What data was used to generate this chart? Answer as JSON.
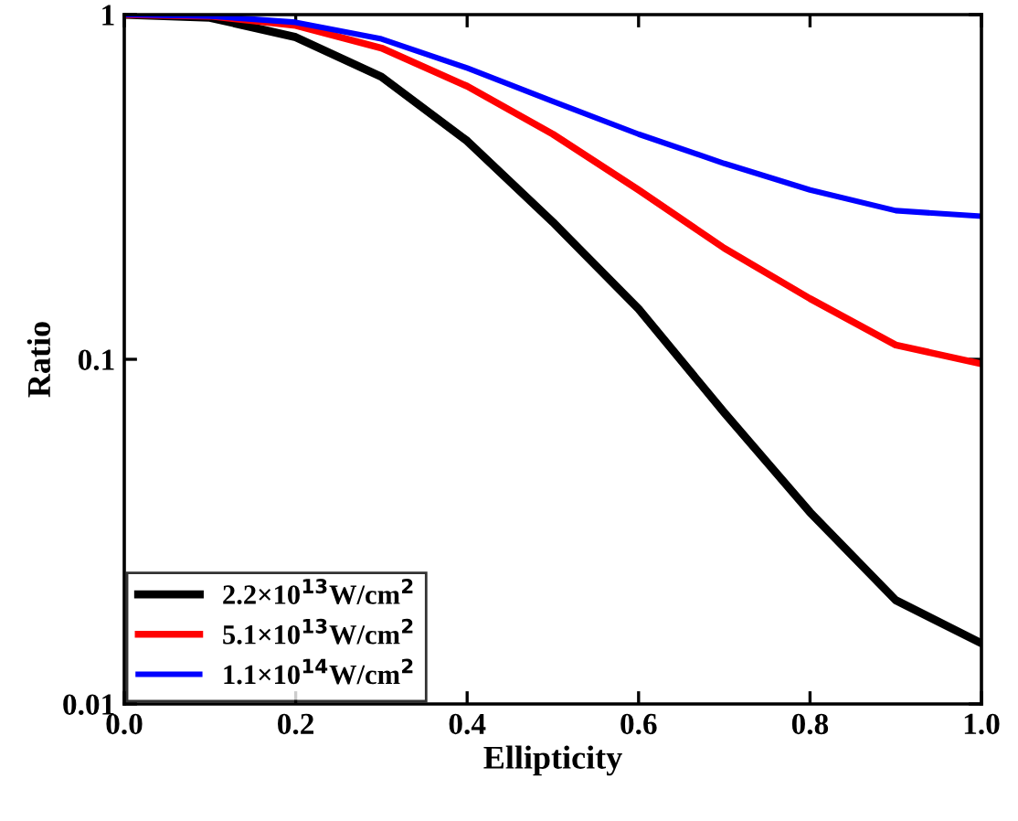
{
  "chart_data": {
    "type": "line",
    "xlabel": "Ellipticity",
    "ylabel": "Ratio",
    "log": "y",
    "x": [
      0.0,
      0.1,
      0.2,
      0.3,
      0.4,
      0.5,
      0.6,
      0.7,
      0.8,
      0.9,
      1.0
    ],
    "series": [
      {
        "name": "2.2×10$^{13}$W/cm$^{2}$",
        "color": "#000000",
        "values": [
          1,
          0.98,
          0.86,
          0.66,
          0.43,
          0.25,
          0.14,
          0.07,
          0.036,
          0.02,
          0.015
        ]
      },
      {
        "name": "5.1×10$^{13}$W/cm$^{2}$",
        "color": "#ff0000",
        "values": [
          1,
          0.99,
          0.93,
          0.8,
          0.62,
          0.45,
          0.31,
          0.21,
          0.15,
          0.11,
          0.097
        ]
      },
      {
        "name": "1.1×10$^{14}$W/cm$^{2}$",
        "color": "#0000ff",
        "values": [
          1,
          0.99,
          0.95,
          0.85,
          0.7,
          0.56,
          0.45,
          0.37,
          0.31,
          0.27,
          0.26
        ]
      }
    ],
    "xlim": [
      0,
      1
    ],
    "ylim": [
      0.01,
      1
    ],
    "xticks": [
      {
        "value": 0,
        "label": "0.0"
      },
      {
        "value": 0.2,
        "label": "0.2"
      },
      {
        "value": 0.4,
        "label": "0.4"
      },
      {
        "value": 0.6,
        "label": "0.6"
      },
      {
        "value": 0.8,
        "label": "0.8"
      },
      {
        "value": 1,
        "label": "1.0"
      }
    ],
    "yticks": [
      0.01,
      0.1,
      1
    ],
    "legend": "bottom left",
    "grid": false,
    "marker": "none",
    "line_style": "solid"
  }
}
